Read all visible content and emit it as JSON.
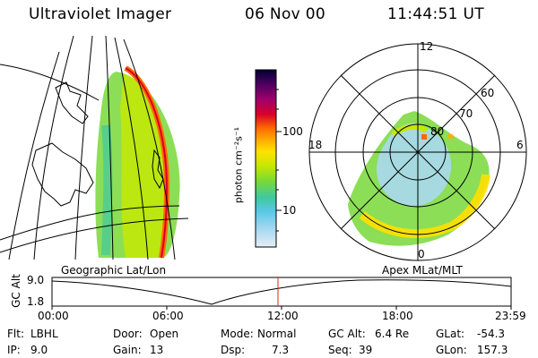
{
  "header": {
    "title": "Ultraviolet Imager",
    "date": "06 Nov 00",
    "time": "11:44:51 UT"
  },
  "geo_panel": {
    "label": "Geographic Lat/Lon"
  },
  "apex_panel": {
    "label": "Apex MLat/MLT",
    "mlt_labels": [
      "12",
      "18",
      "6",
      "0"
    ],
    "lat_labels": [
      "60",
      "70",
      "80"
    ]
  },
  "colorbar": {
    "unit_label": "photon cm⁻²s⁻¹",
    "ticks": [
      "100",
      "10"
    ],
    "colors": [
      "#000033",
      "#4b0060",
      "#a0006a",
      "#d8002a",
      "#ff6a00",
      "#ffb000",
      "#ffe000",
      "#c8e800",
      "#78d838",
      "#40c8a0",
      "#58c8e8",
      "#a8d8f0",
      "#e6eef6"
    ]
  },
  "altitude_plot": {
    "ylabel": "GC Alt",
    "ymax": "9.0",
    "ymin": "1.8",
    "x_ticks": [
      "00:00",
      "06:00",
      "12:00",
      "18:00",
      "23:59"
    ],
    "marker_color": "#e02020"
  },
  "info": {
    "flt_label": "Flt:",
    "flt_value": "LBHL",
    "ip_label": "IP:",
    "ip_value": "9.0",
    "door_label": "Door:",
    "door_value": "Open",
    "gain_label": "Gain:",
    "gain_value": "13",
    "mode_label": "Mode:",
    "mode_value": "Normal",
    "dsp_label": "Dsp:",
    "dsp_value": "7.3",
    "gcalt_label": "GC Alt:",
    "gcalt_value": "6.4 Re",
    "seq_label": "Seq:",
    "seq_value": "39",
    "glat_label": "GLat:",
    "glat_value": "-54.3",
    "glon_label": "GLon:",
    "glon_value": "157.3"
  }
}
